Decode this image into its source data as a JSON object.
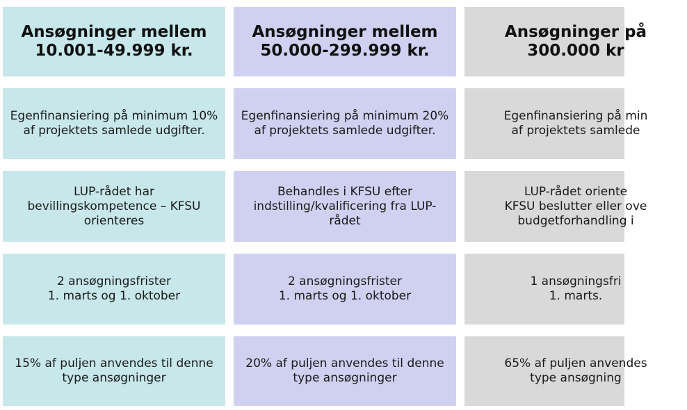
{
  "colors": {
    "column_1": "#c7e7ea",
    "column_2": "#d0d0f0",
    "column_3": "#d9d9d9"
  },
  "columns": [
    {
      "header": "Ansøgninger mellem\n10.001-49.999 kr.",
      "cells": [
        "Egenfinansiering på minimum 10%\naf projektets samlede udgifter.",
        "LUP-rådet har\nbevillingskompetence – KFSU\norienteres",
        "2 ansøgningsfrister\n1. marts og 1. oktober",
        "15% af puljen anvendes til denne\ntype ansøgninger"
      ]
    },
    {
      "header": "Ansøgninger mellem\n50.000-299.999 kr.",
      "cells": [
        "Egenfinansiering på minimum 20%\naf projektets samlede udgifter.",
        "Behandles i KFSU efter\nindstilling/kvalificering fra LUP-\nrådet",
        "2 ansøgningsfrister\n1. marts og 1. oktober",
        "20% af puljen anvendes til denne\ntype ansøgninger"
      ]
    },
    {
      "header": "Ansøgninger på\n300.000 kr",
      "cells": [
        "Egenfinansiering på min\naf projektets samlede",
        "LUP-rådet oriente\nKFSU beslutter eller ove\nbudgetforhandling i",
        "1 ansøgningsfri\n1. marts.",
        "65% af puljen anvendes\ntype ansøgning"
      ]
    }
  ]
}
